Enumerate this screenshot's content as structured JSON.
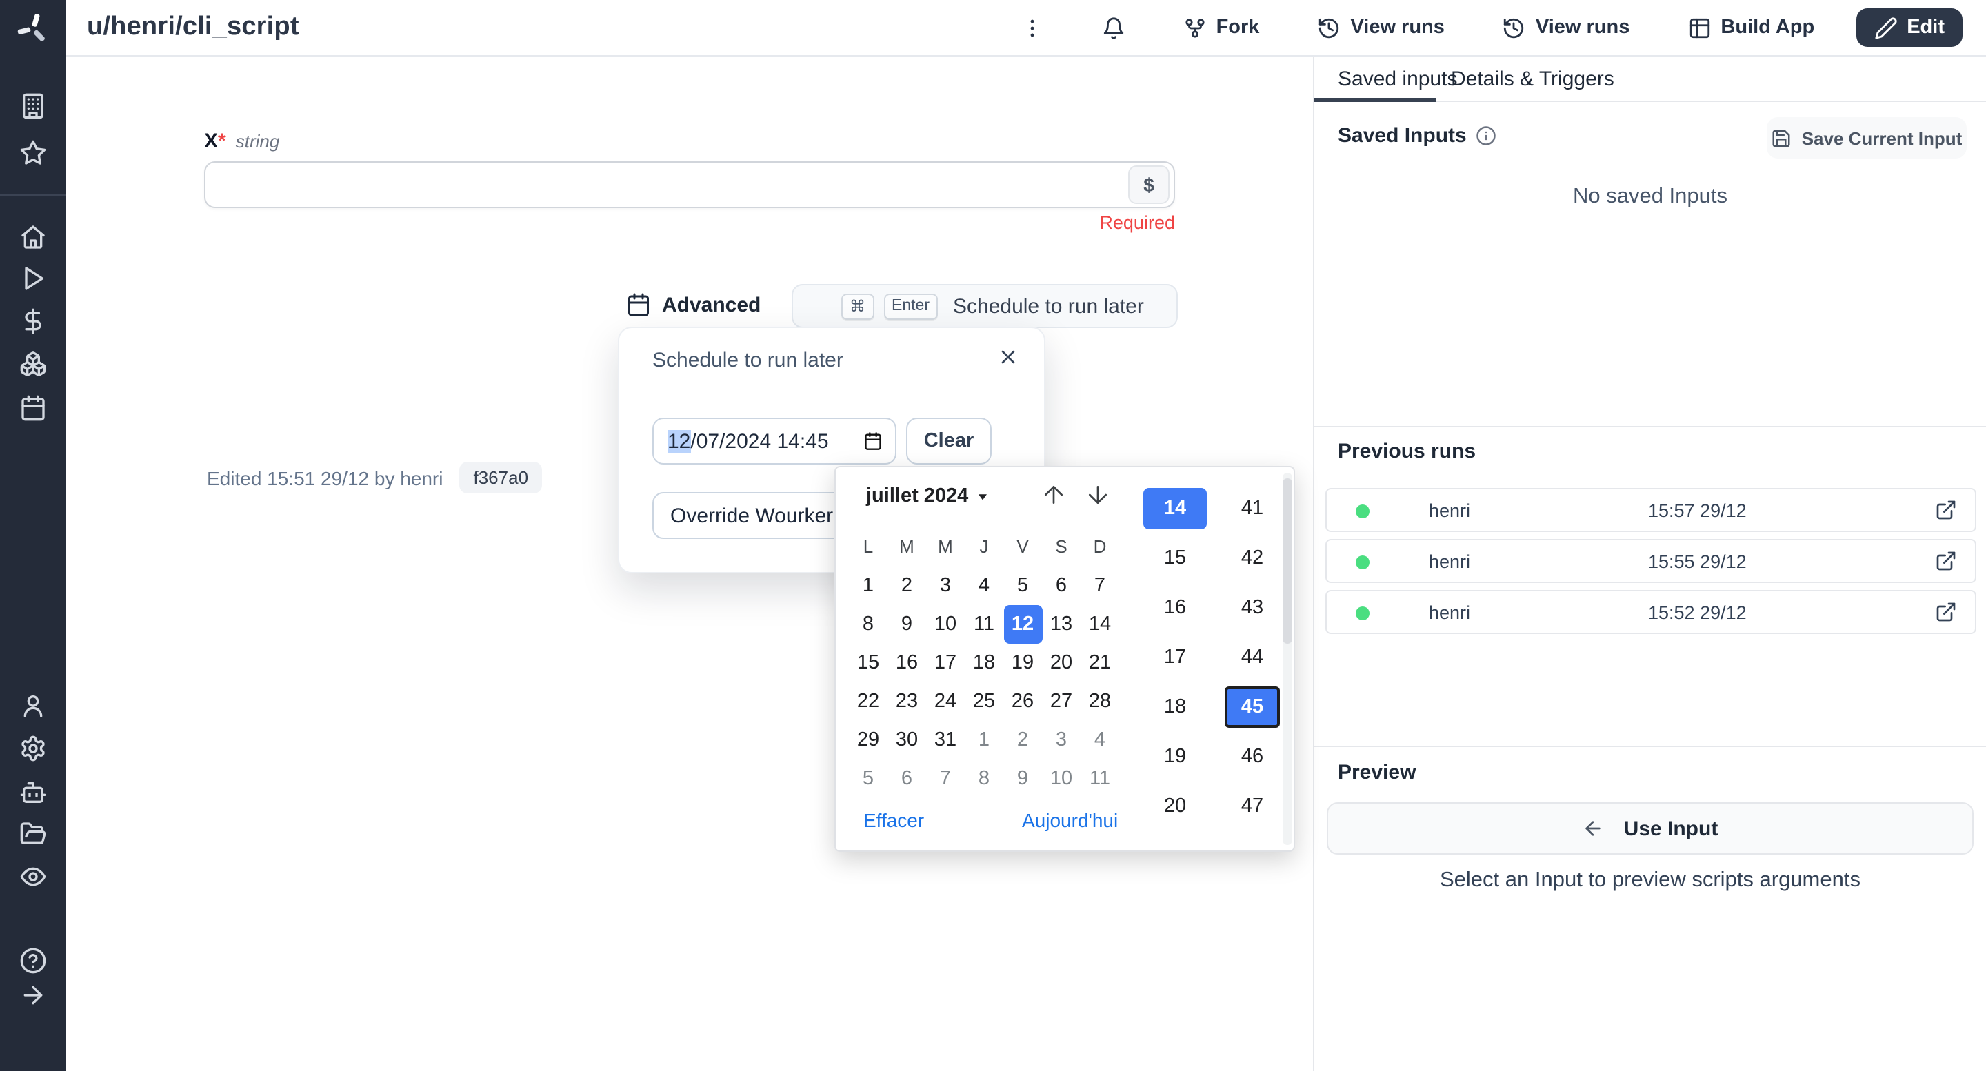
{
  "colors": {
    "accent_blue": "#3f7af5",
    "link_blue": "#1a73e8",
    "selection_blue": "#b9d3fc",
    "success_green": "#4ade80",
    "error_red": "#ef4444",
    "sidebar_bg": "#242b39",
    "dark_button_bg": "#2d3748"
  },
  "topbar": {
    "title": "u/henri/cli_script",
    "actions": [
      {
        "icon": "more-vertical-icon",
        "label": ""
      },
      {
        "icon": "bell-icon",
        "label": ""
      },
      {
        "icon": "git-fork-icon",
        "label": "Fork"
      },
      {
        "icon": "history-icon",
        "label": "View runs"
      },
      {
        "icon": "history-icon",
        "label": "View runs"
      },
      {
        "icon": "grid-icon",
        "label": "Build App"
      },
      {
        "icon": "pencil-icon",
        "label": "Edit",
        "primary": true
      }
    ]
  },
  "sidebar": {
    "icons_top": [
      "building-icon",
      "star-icon"
    ],
    "icons_mid": [
      "home-icon",
      "play-icon",
      "dollar-icon",
      "boxes-icon",
      "calendar-icon"
    ],
    "icons_bottom": [
      "user-icon",
      "settings-icon",
      "bot-icon",
      "folder-open-icon",
      "eye-icon"
    ],
    "icons_last": [
      "help-circle-icon",
      "arrow-right-icon"
    ]
  },
  "form": {
    "label": "X",
    "asterisk": "*",
    "type_hint": "string",
    "dollar": "$",
    "required_error": "Required"
  },
  "advanced": {
    "label": "Advanced",
    "key_cmd": "⌘",
    "key_enter": "Enter",
    "button_label": "Schedule to run later"
  },
  "schedule_popup": {
    "title": "Schedule to run later",
    "datetime_selected": "12",
    "datetime_rest": "/07/2024 14:45",
    "clear_label": "Clear",
    "override_label": "Override Wourker Group"
  },
  "edited": {
    "text": "Edited 15:51 29/12 by henri",
    "hash": "f367a0"
  },
  "datepicker": {
    "month_label": "juillet 2024",
    "weekdays": [
      "L",
      "M",
      "M",
      "J",
      "V",
      "S",
      "D"
    ],
    "days": [
      1,
      2,
      3,
      4,
      5,
      6,
      7,
      8,
      9,
      10,
      11,
      12,
      13,
      14,
      15,
      16,
      17,
      18,
      19,
      20,
      21,
      22,
      23,
      24,
      25,
      26,
      27,
      28,
      29,
      30,
      31,
      1,
      2,
      3,
      4,
      5,
      6,
      7,
      8,
      9,
      10,
      11
    ],
    "muted_start_index": 31,
    "selected_day_index": 11,
    "hours": [
      14,
      15,
      16,
      17,
      18,
      19,
      20
    ],
    "selected_hour": 14,
    "minutes": [
      41,
      42,
      43,
      44,
      45,
      46,
      47
    ],
    "selected_minute": 45,
    "clear_label": "Effacer",
    "today_label": "Aujourd'hui"
  },
  "panel": {
    "tabs": [
      {
        "label": "Saved inputs",
        "active": true
      },
      {
        "label": "Details & Triggers",
        "active": false
      }
    ],
    "saved_inputs": {
      "heading": "Saved Inputs",
      "save_button": "Save Current Input",
      "empty": "No saved Inputs"
    },
    "previous_runs": {
      "heading": "Previous runs",
      "runs": [
        {
          "status": "success",
          "user": "henri",
          "time": "15:57 29/12"
        },
        {
          "status": "success",
          "user": "henri",
          "time": "15:55 29/12"
        },
        {
          "status": "success",
          "user": "henri",
          "time": "15:52 29/12"
        }
      ]
    },
    "preview": {
      "heading": "Preview",
      "use_input_label": "Use Input",
      "hint": "Select an Input to preview scripts arguments"
    }
  }
}
